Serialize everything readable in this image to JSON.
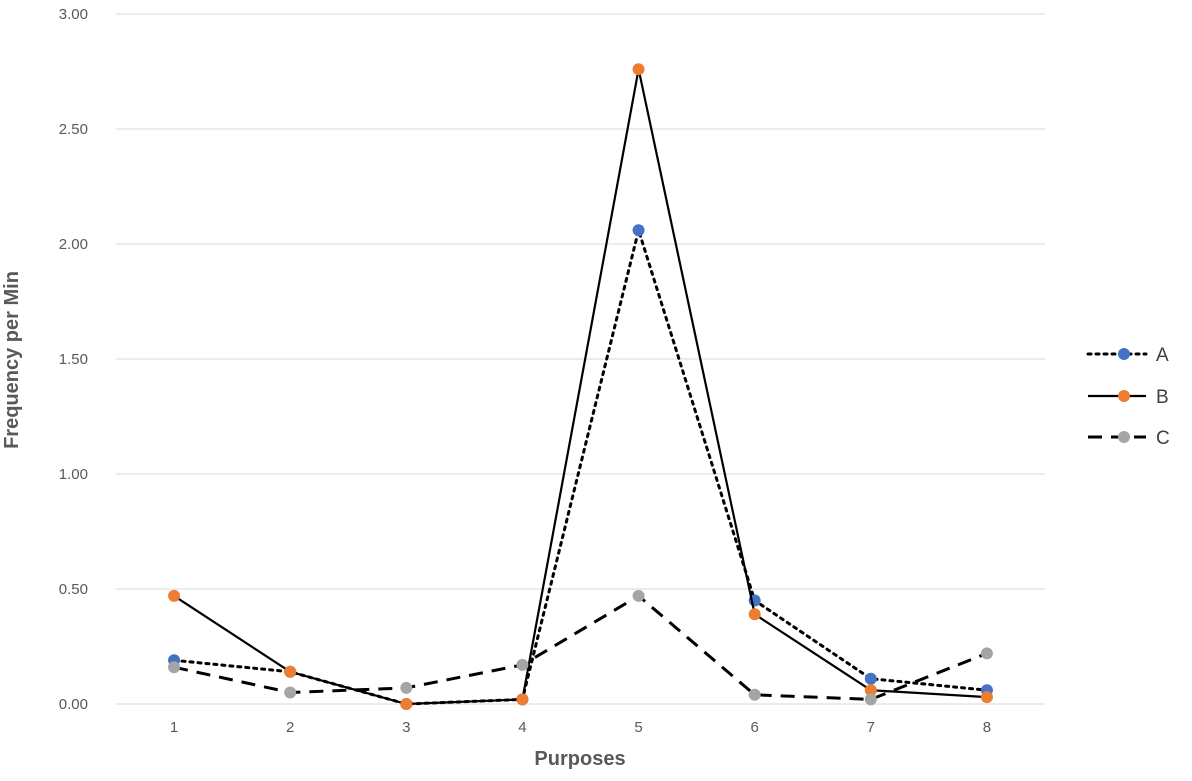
{
  "chart_data": {
    "type": "line",
    "xlabel": "Purposes",
    "ylabel": "Frequency per Min",
    "categories": [
      "1",
      "2",
      "3",
      "4",
      "5",
      "6",
      "7",
      "8"
    ],
    "ylim": [
      0,
      3
    ],
    "yticks": [
      "0.00",
      "0.50",
      "1.00",
      "1.50",
      "2.00",
      "2.50",
      "3.00"
    ],
    "ytick_values": [
      0,
      0.5,
      1,
      1.5,
      2,
      2.5,
      3
    ],
    "grid": "horizontal",
    "legend_position": "right",
    "series": [
      {
        "name": "A",
        "color": "#4472c4",
        "line": "dotted",
        "values": [
          0.19,
          0.14,
          0.0,
          0.02,
          2.06,
          0.45,
          0.11,
          0.06
        ]
      },
      {
        "name": "B",
        "color": "#ed7d31",
        "line": "solid",
        "values": [
          0.47,
          0.14,
          0.0,
          0.02,
          2.76,
          0.39,
          0.06,
          0.03
        ]
      },
      {
        "name": "C",
        "color": "#a5a5a5",
        "line": "dashed",
        "values": [
          0.16,
          0.05,
          0.07,
          0.17,
          0.47,
          0.04,
          0.02,
          0.22
        ]
      }
    ]
  }
}
